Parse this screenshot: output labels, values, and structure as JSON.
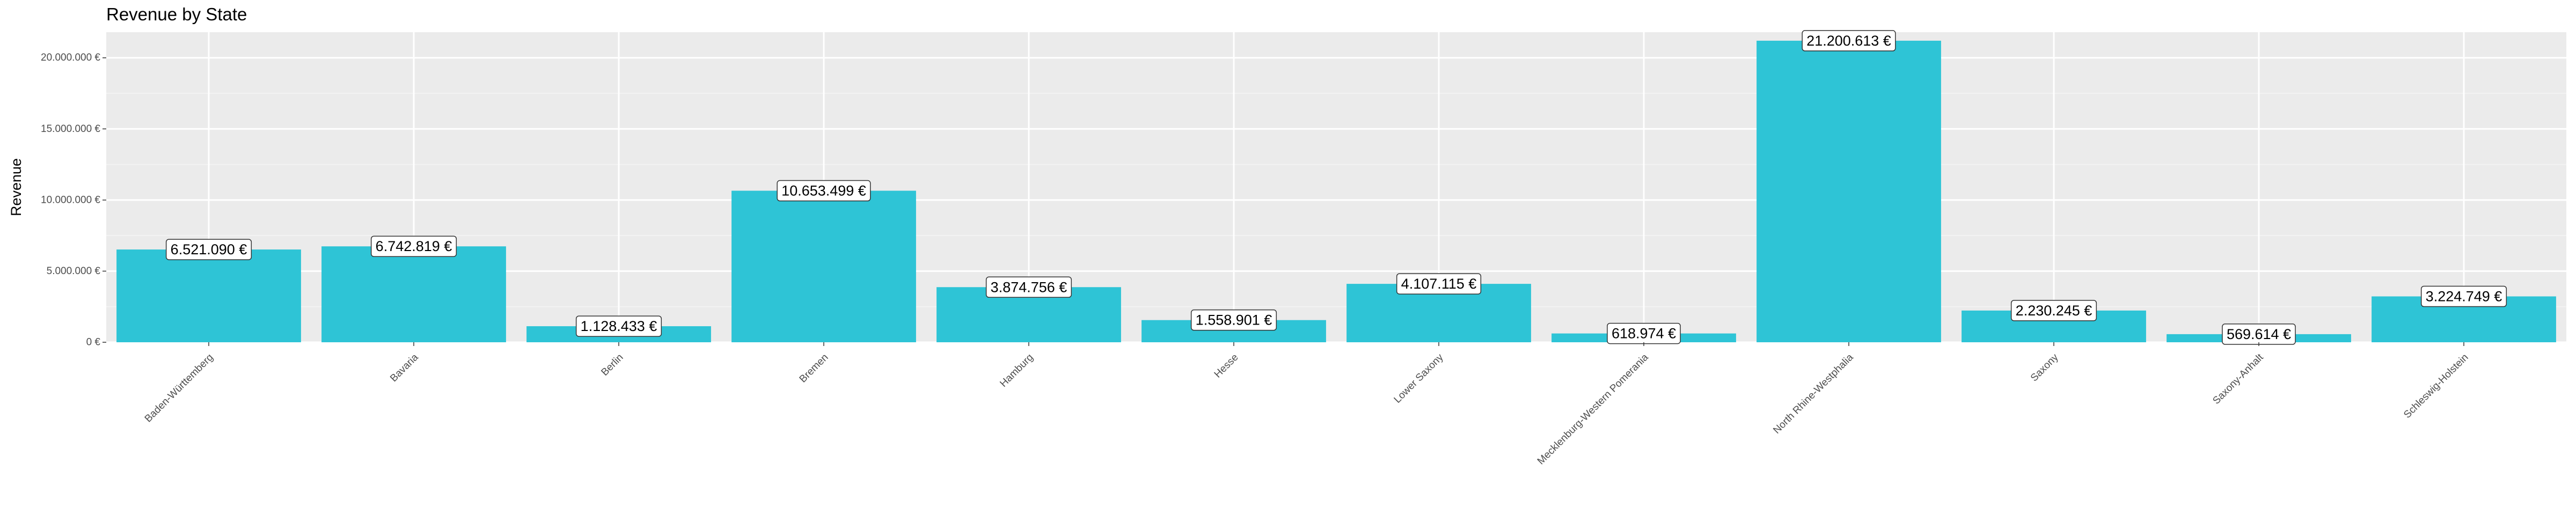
{
  "chart_data": {
    "type": "bar",
    "title": "Revenue by State",
    "xlabel": "",
    "ylabel": "Revenue",
    "ylim": [
      0,
      21800000
    ],
    "yticks": [
      0,
      5000000,
      10000000,
      15000000,
      20000000
    ],
    "ytick_labels": [
      "0 €",
      "5.000.000 €",
      "10.000.000 €",
      "15.000.000 €",
      "20.000.000 €"
    ],
    "categories": [
      "Baden-Württemberg",
      "Bavaria",
      "Berlin",
      "Bremen",
      "Hamburg",
      "Hesse",
      "Lower Saxony",
      "Mecklenburg-Western Pomerania",
      "North Rhine-Westphalia",
      "Saxony",
      "Saxony-Anhalt",
      "Schleswig-Holstein"
    ],
    "values": [
      6521090,
      6742819,
      1128433,
      10653499,
      3874756,
      1558901,
      4107115,
      618974,
      21200613,
      2230245,
      569614,
      3224749
    ],
    "data_labels": [
      "6.521.090 €",
      "6.742.819 €",
      "1.128.433 €",
      "10.653.499 €",
      "3.874.756 €",
      "1.558.901 €",
      "4.107.115 €",
      "618.974 €",
      "21.200.613 €",
      "2.230.245 €",
      "569.614 €",
      "3.224.749 €"
    ],
    "bar_color": "#2EC4D6",
    "panel_color": "#EBEBEB",
    "grid": true,
    "legend": "none"
  }
}
